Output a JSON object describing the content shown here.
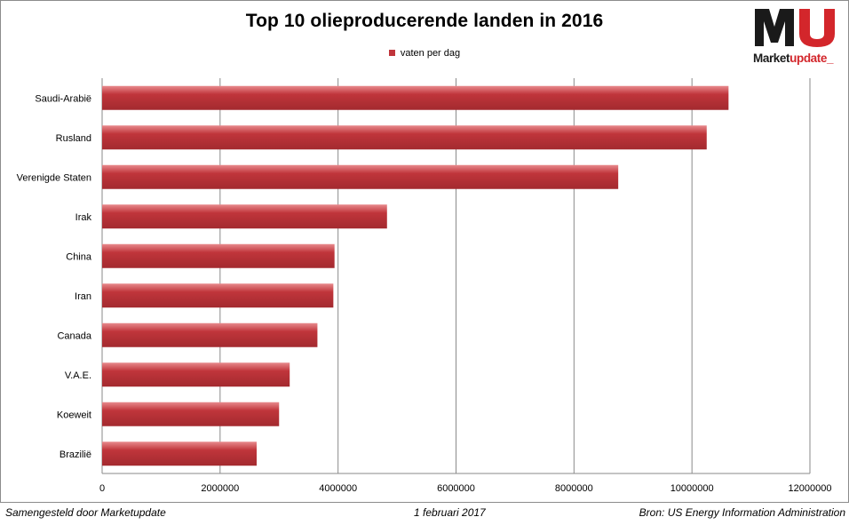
{
  "header": {
    "title": "Top 10 olieproducerende landen in 2016"
  },
  "logo": {
    "mark": "MU",
    "word_dark": "Market",
    "word_red": "update_",
    "colors": {
      "dark": "#1a1a1a",
      "red": "#d3262b"
    }
  },
  "footer": {
    "left": "Samengesteld door Marketupdate",
    "center": "1 februari 2017",
    "right": "Bron: US Energy Information Administration"
  },
  "colors": {
    "bar": "#c0353b",
    "bar_light": "#e88a8d",
    "bar_dark": "#a32a2f",
    "grid": "#8a8a8a"
  },
  "chart_data": {
    "type": "bar",
    "orientation": "horizontal",
    "title": "Top 10 olieproducerende landen in 2016",
    "categories": [
      "Saudi-Arabië",
      "Rusland",
      "Verenigde Staten",
      "Irak",
      "China",
      "Iran",
      "Canada",
      "V.A.E.",
      "Koeweit",
      "Brazilië"
    ],
    "series": [
      {
        "name": "vaten per dag",
        "values": [
          10620000,
          10250000,
          8750000,
          4830000,
          3940000,
          3920000,
          3650000,
          3180000,
          3000000,
          2620000
        ]
      }
    ],
    "xlim": [
      0,
      12000000
    ],
    "x_ticks": [
      0,
      2000000,
      4000000,
      6000000,
      8000000,
      10000000,
      12000000
    ],
    "x_tick_labels": [
      "0",
      "2000000",
      "4000000",
      "6000000",
      "8000000",
      "10000000",
      "12000000"
    ],
    "grid": true,
    "legend_position": "top-center"
  }
}
